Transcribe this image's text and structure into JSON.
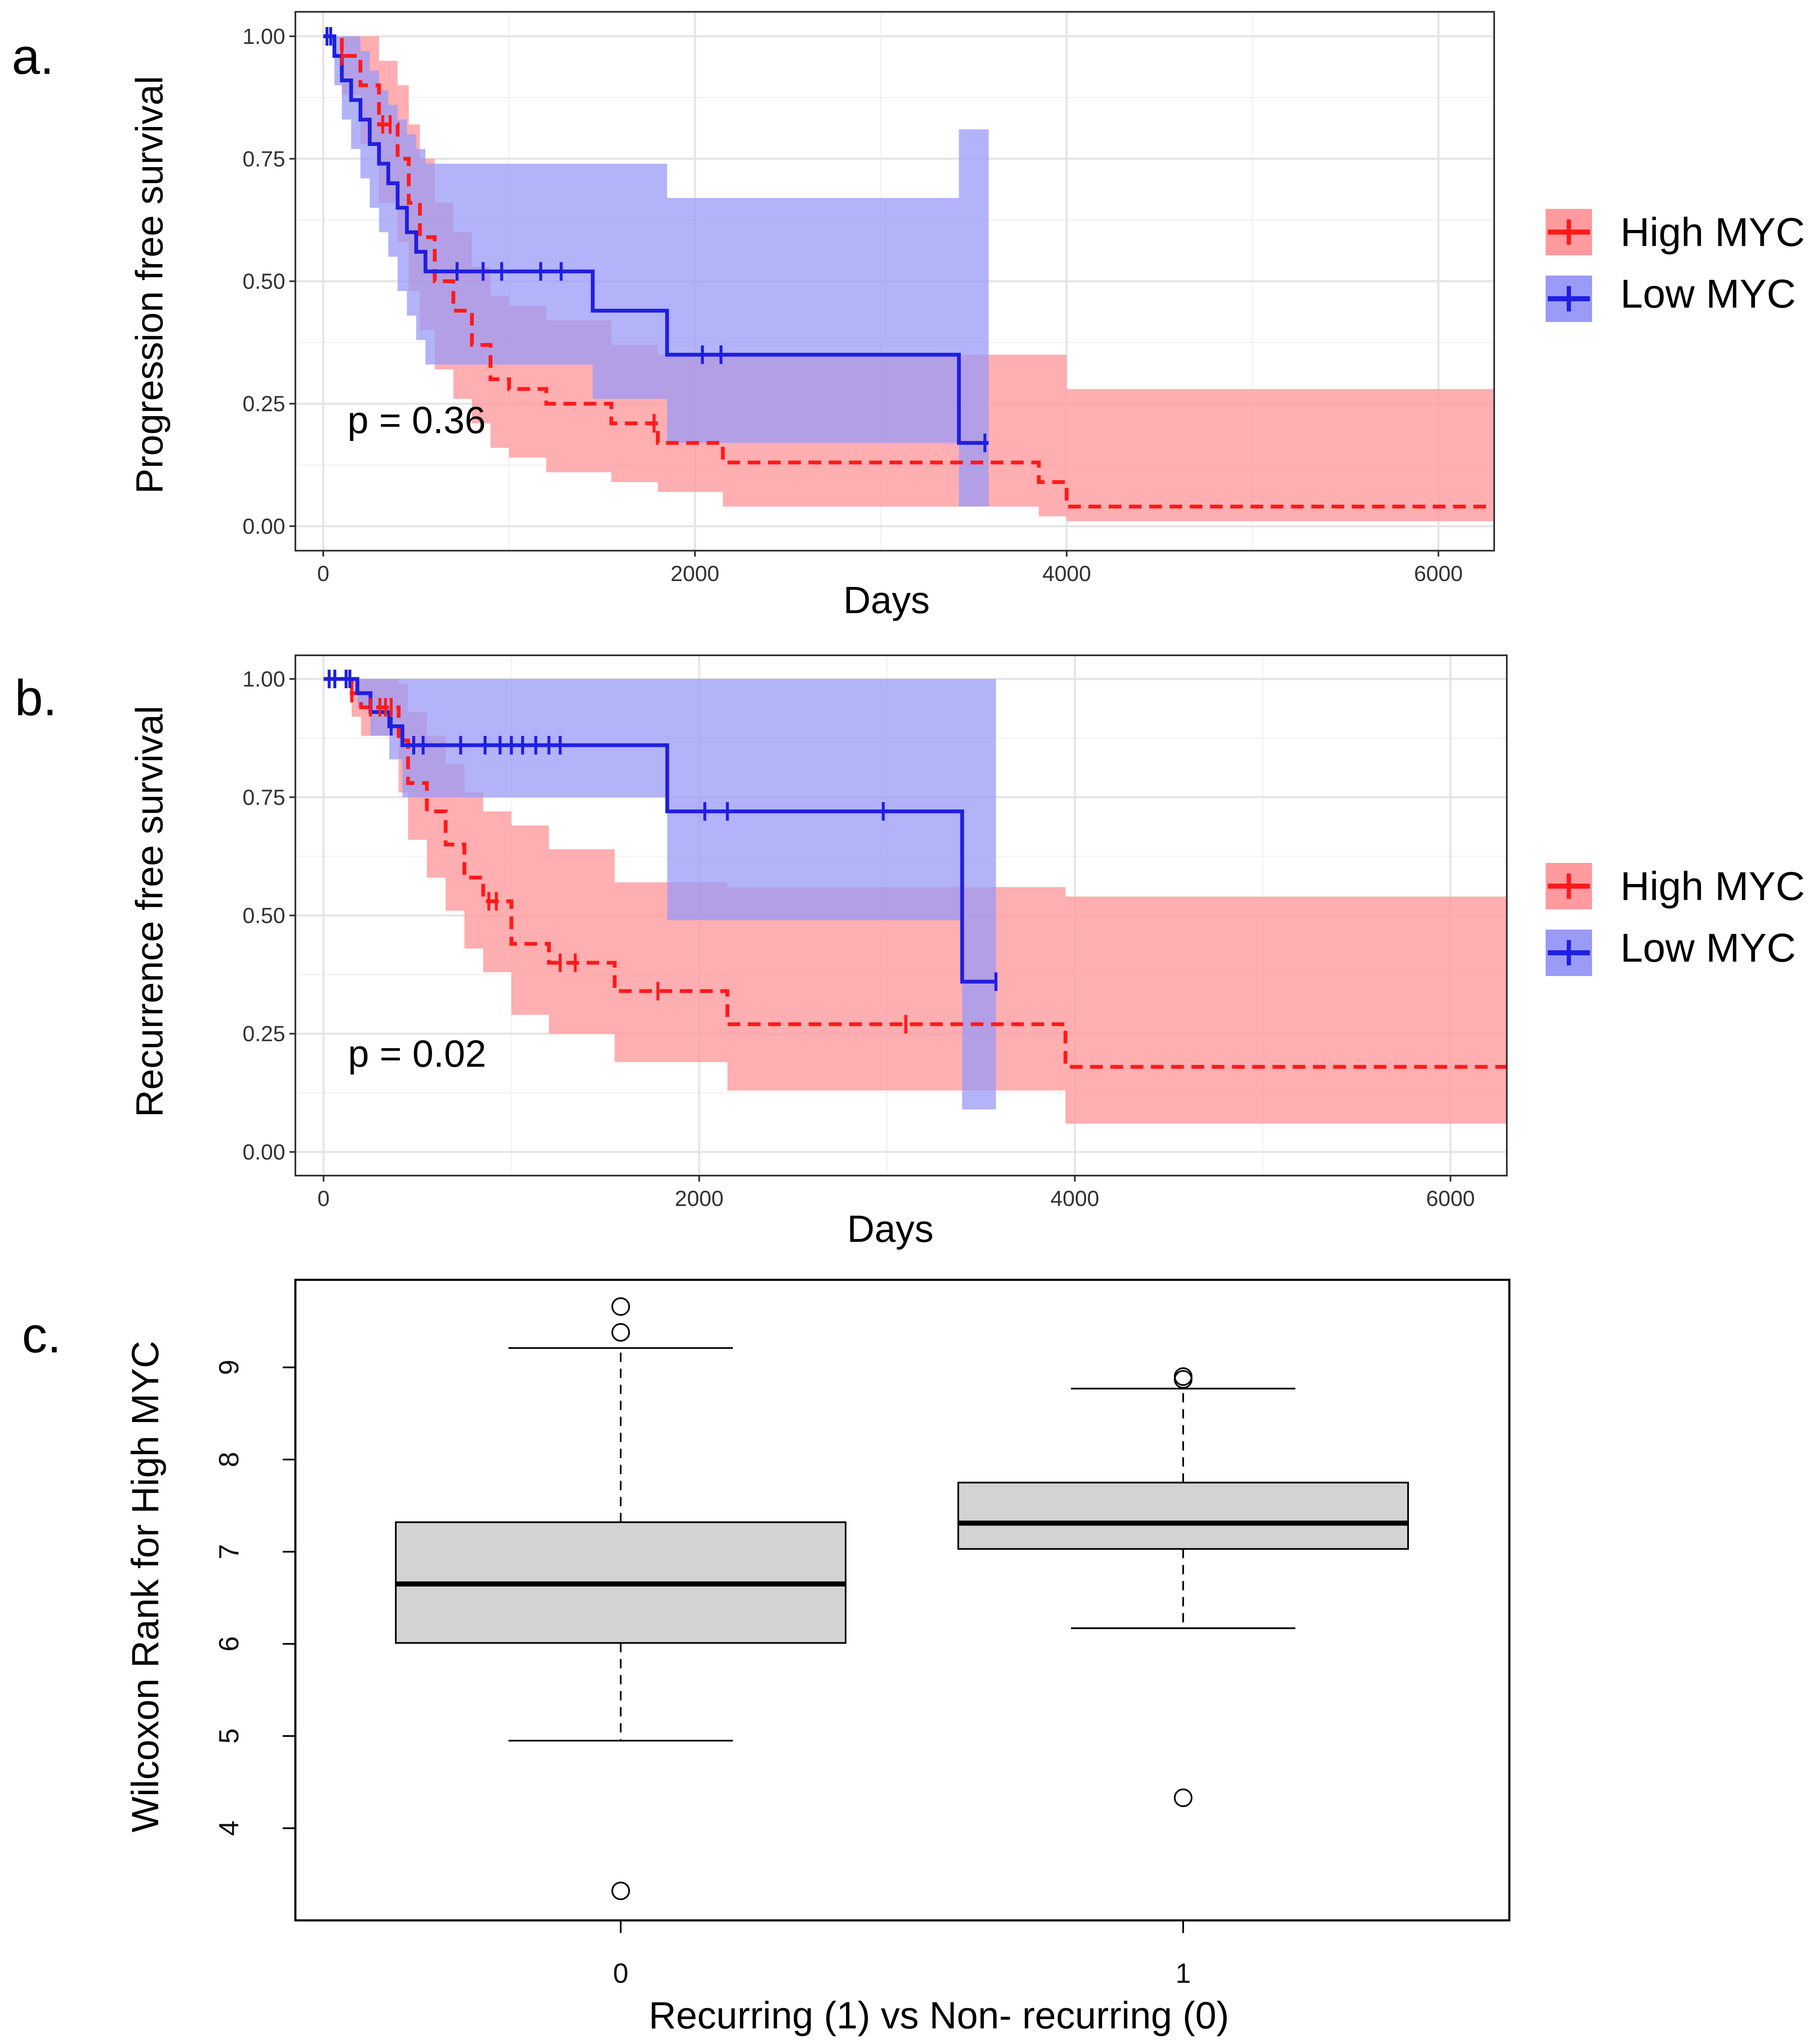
{
  "colors": {
    "high": "#ff1a1a",
    "high_band": "#ff9a9e",
    "low": "#1f1fe0",
    "low_band": "#9a9af7",
    "overlap": "#d879b8",
    "box_fill": "#d3d3d3",
    "grid_major": "#e5e5e5",
    "grid_minor": "#f2f2f2"
  },
  "legend": {
    "high_label": "High MYC",
    "low_label": "Low MYC"
  },
  "chart_data": [
    {
      "panel": "a.",
      "type": "line",
      "subtype": "kaplan-meier",
      "xlabel": "Days",
      "ylabel": "Progression free survival",
      "xlim": [
        -150,
        6300
      ],
      "ylim": [
        -0.05,
        1.05
      ],
      "xticks": [
        0,
        2000,
        4000,
        6000
      ],
      "xtick_labels": [
        "0",
        "2000",
        "4000",
        "6000"
      ],
      "yticks": [
        0,
        0.25,
        0.5,
        0.75,
        1
      ],
      "ytick_labels": [
        "0.00",
        "0.25",
        "0.50",
        "0.75",
        "1.00"
      ],
      "annotation": "p = 0.36",
      "annotation_pos": [
        130,
        0.19
      ],
      "series": [
        {
          "name": "High MYC",
          "style": "dashed",
          "x": [
            0,
            100,
            200,
            300,
            400,
            460,
            520,
            600,
            700,
            800,
            900,
            1000,
            1200,
            1550,
            1800,
            2150,
            3850,
            4000,
            6300
          ],
          "y": [
            1.0,
            0.96,
            0.9,
            0.82,
            0.75,
            0.66,
            0.59,
            0.5,
            0.44,
            0.37,
            0.3,
            0.28,
            0.25,
            0.21,
            0.17,
            0.13,
            0.09,
            0.04,
            0.04
          ],
          "lower": [
            1.0,
            0.88,
            0.78,
            0.66,
            0.58,
            0.48,
            0.4,
            0.32,
            0.26,
            0.21,
            0.16,
            0.14,
            0.11,
            0.09,
            0.07,
            0.04,
            0.02,
            0.01,
            0.01
          ],
          "upper": [
            1.0,
            1.0,
            1.0,
            0.95,
            0.9,
            0.82,
            0.75,
            0.66,
            0.6,
            0.53,
            0.47,
            0.45,
            0.42,
            0.37,
            0.35,
            0.35,
            0.35,
            0.28,
            0.28
          ],
          "censor_x": [
            100,
            320,
            360,
            1780
          ],
          "censor_y": [
            0.96,
            0.82,
            0.82,
            0.21
          ]
        },
        {
          "name": "Low MYC",
          "style": "solid",
          "x": [
            0,
            60,
            100,
            150,
            200,
            250,
            300,
            350,
            400,
            450,
            500,
            550,
            1450,
            1850,
            3420,
            3580
          ],
          "y": [
            1.0,
            0.96,
            0.91,
            0.87,
            0.83,
            0.78,
            0.74,
            0.7,
            0.65,
            0.6,
            0.56,
            0.52,
            0.44,
            0.35,
            0.17,
            0.17
          ],
          "lower": [
            1.0,
            0.9,
            0.83,
            0.77,
            0.71,
            0.65,
            0.6,
            0.55,
            0.48,
            0.43,
            0.38,
            0.33,
            0.26,
            0.17,
            0.04,
            0.04
          ],
          "upper": [
            1.0,
            1.0,
            1.0,
            1.0,
            0.97,
            0.93,
            0.89,
            0.86,
            0.83,
            0.8,
            0.77,
            0.74,
            0.74,
            0.67,
            0.81,
            0.81
          ],
          "censor_x": [
            20,
            40,
            720,
            860,
            960,
            1170,
            1280,
            2040,
            2140,
            3560
          ],
          "censor_y": [
            1.0,
            1.0,
            0.52,
            0.52,
            0.52,
            0.52,
            0.52,
            0.35,
            0.35,
            0.17
          ]
        }
      ]
    },
    {
      "panel": "b.",
      "type": "line",
      "subtype": "kaplan-meier",
      "xlabel": "Days",
      "ylabel": "Recurrence  free survival",
      "xlim": [
        -150,
        6300
      ],
      "ylim": [
        -0.05,
        1.05
      ],
      "xticks": [
        0,
        2000,
        4000,
        6000
      ],
      "xtick_labels": [
        "0",
        "2000",
        "4000",
        "6000"
      ],
      "yticks": [
        0,
        0.25,
        0.5,
        0.75,
        1
      ],
      "ytick_labels": [
        "0.00",
        "0.25",
        "0.50",
        "0.75",
        "1.00"
      ],
      "annotation": "p = 0.02",
      "annotation_pos": [
        130,
        0.18
      ],
      "series": [
        {
          "name": "High MYC",
          "style": "dashed",
          "x": [
            0,
            150,
            200,
            400,
            450,
            550,
            650,
            750,
            850,
            1000,
            1200,
            1550,
            2150,
            3950,
            6300
          ],
          "y": [
            1.0,
            0.97,
            0.94,
            0.87,
            0.78,
            0.72,
            0.65,
            0.58,
            0.53,
            0.44,
            0.4,
            0.34,
            0.27,
            0.18,
            0.18
          ],
          "lower": [
            1.0,
            0.92,
            0.88,
            0.76,
            0.66,
            0.58,
            0.51,
            0.43,
            0.38,
            0.29,
            0.25,
            0.19,
            0.13,
            0.06,
            0.06
          ],
          "upper": [
            1.0,
            1.0,
            1.0,
            0.99,
            0.93,
            0.88,
            0.82,
            0.76,
            0.72,
            0.69,
            0.64,
            0.57,
            0.56,
            0.54,
            0.54
          ],
          "censor_x": [
            150,
            250,
            300,
            330,
            360,
            880,
            920,
            1260,
            1340,
            1780,
            3100
          ],
          "censor_y": [
            0.97,
            0.94,
            0.94,
            0.94,
            0.94,
            0.53,
            0.53,
            0.4,
            0.4,
            0.34,
            0.27
          ]
        },
        {
          "name": "Low MYC",
          "style": "solid",
          "x": [
            0,
            180,
            250,
            350,
            420,
            1830,
            3400,
            3580
          ],
          "y": [
            1.0,
            0.97,
            0.93,
            0.9,
            0.86,
            0.72,
            0.36,
            0.36
          ],
          "lower": [
            1.0,
            0.94,
            0.88,
            0.83,
            0.75,
            0.49,
            0.09,
            0.09
          ],
          "upper": [
            1.0,
            1.0,
            1.0,
            1.0,
            1.0,
            1.0,
            1.0,
            1.0
          ],
          "censor_x": [
            30,
            60,
            120,
            140,
            360,
            480,
            530,
            730,
            860,
            940,
            1000,
            1060,
            1130,
            1200,
            1260,
            2030,
            2150,
            2980,
            3580
          ],
          "censor_y": [
            1.0,
            1.0,
            1.0,
            1.0,
            0.9,
            0.86,
            0.86,
            0.86,
            0.86,
            0.86,
            0.86,
            0.86,
            0.86,
            0.86,
            0.86,
            0.72,
            0.72,
            0.72,
            0.36
          ]
        }
      ]
    },
    {
      "panel": "c.",
      "type": "box",
      "xlabel": "Recurring (1) vs Non- recurring (0)",
      "ylabel": "Wilcoxon Rank for High MYC",
      "ylim": [
        3.0,
        9.95
      ],
      "yticks": [
        4,
        5,
        6,
        7,
        8,
        9
      ],
      "ytick_labels": [
        "4",
        "5",
        "6",
        "7",
        "8",
        "9"
      ],
      "categories": [
        "0",
        "1"
      ],
      "boxes": [
        {
          "category": "0",
          "whisker_low": 4.95,
          "q1": 6.01,
          "median": 6.65,
          "q3": 7.32,
          "whisker_high": 9.21,
          "outliers": [
            9.38,
            9.66,
            3.32
          ]
        },
        {
          "category": "1",
          "whisker_low": 6.17,
          "q1": 7.03,
          "median": 7.31,
          "q3": 7.75,
          "whisker_high": 8.77,
          "outliers": [
            8.87,
            8.9,
            4.33
          ]
        }
      ]
    }
  ]
}
